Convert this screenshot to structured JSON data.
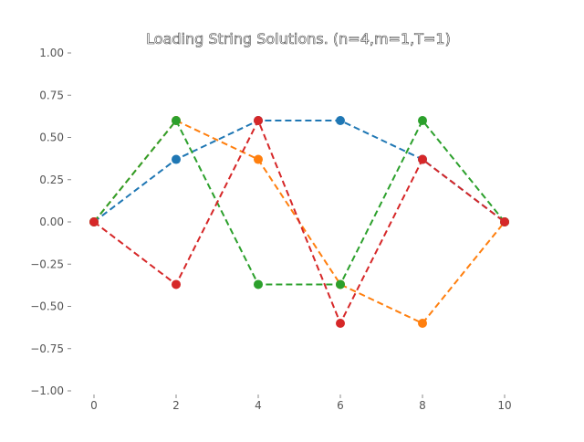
{
  "chart_data": {
    "type": "line",
    "title": "Loading String Solutions. (n=4,m=1,T=1)",
    "xlabel": "",
    "ylabel": "",
    "x": [
      0,
      2,
      4,
      6,
      8,
      10
    ],
    "xlim": [
      0,
      10
    ],
    "ylim": [
      -1.0,
      1.0
    ],
    "xticks": [
      0,
      2,
      4,
      6,
      8,
      10
    ],
    "xtick_labels": [
      "0",
      "2",
      "4",
      "6",
      "8",
      "10"
    ],
    "yticks": [
      1.0,
      0.75,
      0.5,
      0.25,
      0.0,
      -0.25,
      -0.5,
      -0.75,
      -1.0
    ],
    "ytick_labels": [
      "1.00",
      "0.75",
      "0.50",
      "0.25",
      "0.00",
      "−0.25",
      "−0.50",
      "−0.75",
      "−1.00"
    ],
    "grid": false,
    "line_style": "dashed",
    "series": [
      {
        "color": "#1f77b4",
        "values": [
          0.0,
          0.37,
          0.6,
          0.6,
          0.37,
          0.0
        ]
      },
      {
        "color": "#ff7f0e",
        "values": [
          0.0,
          0.6,
          0.37,
          -0.37,
          -0.6,
          0.0
        ]
      },
      {
        "color": "#2ca02c",
        "values": [
          0.0,
          0.6,
          -0.37,
          -0.37,
          0.6,
          0.0
        ]
      },
      {
        "color": "#d62728",
        "values": [
          0.0,
          -0.37,
          0.6,
          -0.6,
          0.37,
          0.0
        ]
      }
    ]
  }
}
